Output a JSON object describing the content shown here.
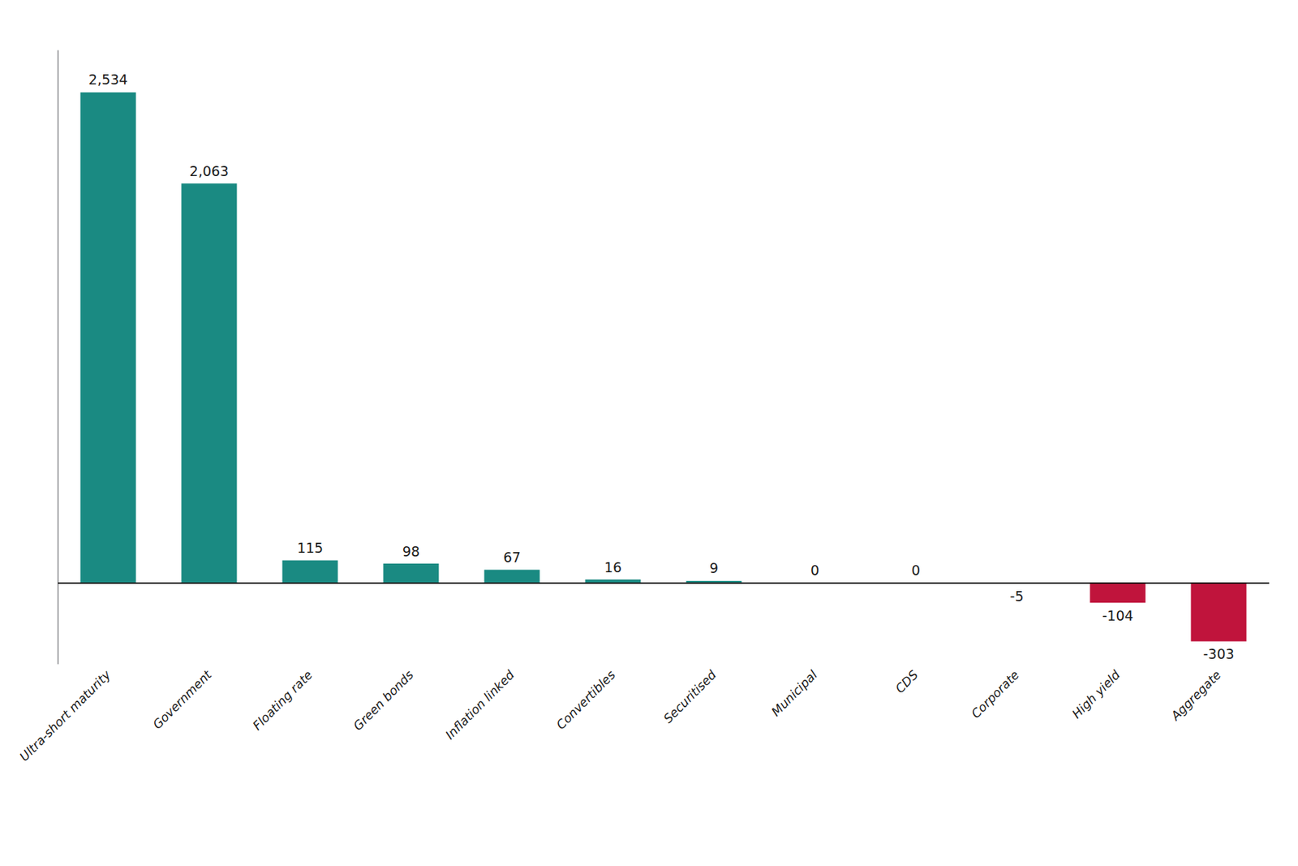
{
  "chart_data": {
    "type": "bar",
    "categories": [
      "Ultra-short maturity",
      "Government",
      "Floating rate",
      "Green bonds",
      "Inflation linked",
      "Convertibles",
      "Securitised",
      "Municipal",
      "CDS",
      "Corporate",
      "High yield",
      "Aggregate"
    ],
    "values": [
      2534,
      2063,
      115,
      98,
      67,
      16,
      9,
      0,
      0,
      -5,
      -104,
      -303
    ],
    "value_labels": [
      "2,534",
      "2,063",
      "115",
      "98",
      "67",
      "16",
      "9",
      "0",
      "0",
      "-5",
      "-104",
      "-303"
    ],
    "colors": [
      "#1a8a82",
      "#1a8a82",
      "#1a8a82",
      "#1a8a82",
      "#1a8a82",
      "#1a8a82",
      "#1a8a82",
      "#1a8a82",
      "#1a8a82",
      "#c0143c",
      "#c0143c",
      "#c0143c"
    ],
    "ylim": [
      -420,
      2750
    ],
    "data_labels": true,
    "tick_labels": "x",
    "grid": false
  }
}
